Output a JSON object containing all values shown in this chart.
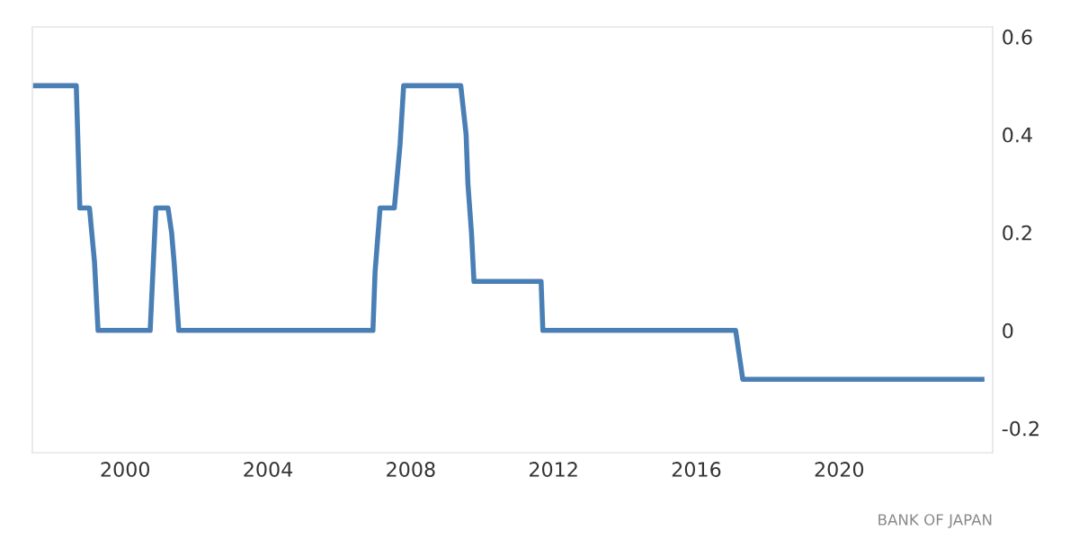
{
  "chart_data": {
    "type": "line",
    "x": [
      1997.4,
      1998.63,
      1998.73,
      1999.0,
      1999.14,
      1999.24,
      2000.7,
      2000.86,
      2001.2,
      2001.3,
      2001.37,
      2001.5,
      2006.94,
      2007.0,
      2007.14,
      2007.54,
      2007.7,
      2007.8,
      2009.4,
      2009.55,
      2009.6,
      2009.7,
      2009.77,
      2011.65,
      2011.7,
      2017.1,
      2017.3,
      2024.0
    ],
    "series": [
      {
        "color": "#4a7fb5",
        "values": [
          0.5,
          0.5,
          0.25,
          0.25,
          0.14,
          0,
          0,
          0.25,
          0.25,
          0.2,
          0.14,
          0,
          0,
          0.12,
          0.25,
          0.25,
          0.38,
          0.5,
          0.5,
          0.4,
          0.3,
          0.2,
          0.1,
          0.1,
          0,
          0,
          -0.1,
          -0.1
        ]
      }
    ],
    "xlim": [
      1997.4,
      2024.3
    ],
    "xticks": [
      2000,
      2004,
      2008,
      2012,
      2016,
      2020
    ],
    "ylim": [
      -0.25,
      0.62
    ],
    "yticks": [
      -0.2,
      0,
      0.2,
      0.4,
      0.6
    ],
    "grid": false,
    "legend": false,
    "annotations": [
      "BANK OF JAPAN"
    ]
  }
}
